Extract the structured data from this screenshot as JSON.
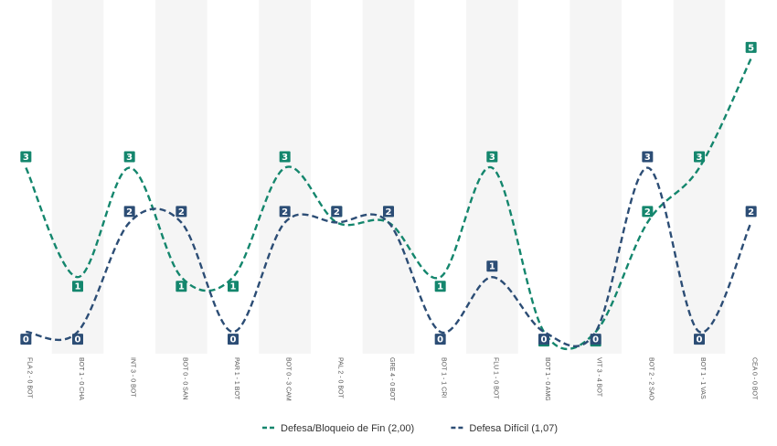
{
  "chart_data": {
    "type": "line",
    "categories": [
      "FLA 2 - 0 BOT",
      "BOT 1 - 0 CHA",
      "INT 3 - 0 BOT",
      "BOT 0 - 0 SAN",
      "PAR 1 - 1 BOT",
      "BOT 0 - 3 CAM",
      "PAL 2 - 0 BOT",
      "GRE 4 - 0 BOT",
      "BOT 1 - 1 CRI",
      "FLU 1 - 0 BOT",
      "BOT 1 - 0 AMG",
      "VIT 3 - 4 BOT",
      "BOT 2 - 2 SAO",
      "BOT 1 - 1 VAS",
      "CEA 0 - 0 BOT"
    ],
    "series": [
      {
        "name": "Defesa/Bloqueio de Fin (2,00)",
        "color": "#14866d",
        "values": [
          3,
          1,
          3,
          1,
          1,
          3,
          2,
          2,
          1,
          3,
          0,
          0,
          2,
          3,
          5
        ]
      },
      {
        "name": "Defesa Difícil (1,07)",
        "color": "#2c4d75",
        "values": [
          0,
          0,
          2,
          2,
          0,
          2,
          2,
          2,
          0,
          1,
          0,
          0,
          3,
          0,
          2
        ]
      }
    ],
    "ylim": [
      -0.4,
      5.9
    ],
    "grid": false,
    "band_colors": [
      "#ffffff",
      "#f5f5f5"
    ],
    "legend_position": "bottom-center"
  }
}
